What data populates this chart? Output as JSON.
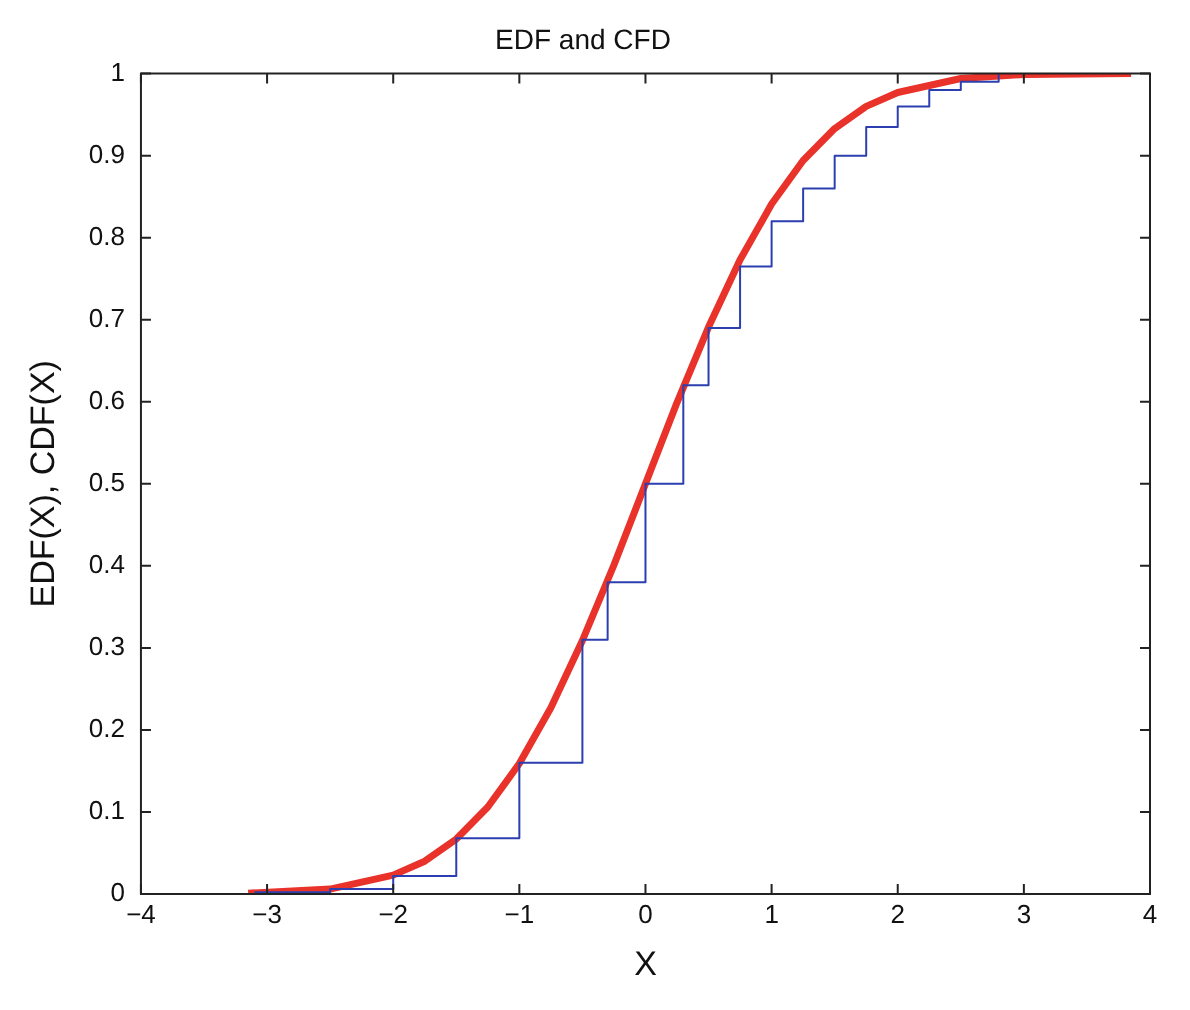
{
  "chart_data": {
    "type": "line",
    "title": "EDF and CFD",
    "xlabel": "X",
    "ylabel": "EDF(X), CDF(X)",
    "xlim": [
      -4,
      4
    ],
    "xticks": [
      -4,
      -3,
      -2,
      -1,
      0,
      1,
      2,
      3,
      4
    ],
    "ylim": [
      0,
      1
    ],
    "yticks": [
      0,
      0.1,
      0.2,
      0.3,
      0.4,
      0.5,
      0.6,
      0.7,
      0.8,
      0.9,
      1
    ],
    "grid": false,
    "legend": false,
    "marker": "none",
    "line_style": "solid",
    "series": [
      {
        "type": "step",
        "color": "#2b3fb0",
        "x": [
          -3.1,
          -2.5,
          -2,
          -1.5,
          -1,
          -0.5,
          -0.3,
          0,
          0.3,
          0.5,
          0.75,
          1,
          1.25,
          1.5,
          1.75,
          2,
          2.25,
          2.5,
          2.8
        ],
        "values": [
          0.002,
          0.006,
          0.022,
          0.068,
          0.16,
          0.31,
          0.38,
          0.5,
          0.62,
          0.69,
          0.765,
          0.82,
          0.86,
          0.9,
          0.935,
          0.96,
          0.98,
          0.99,
          1
        ]
      },
      {
        "color": "#e8322a",
        "x": [
          -3.15,
          -2.5,
          -2,
          -1.75,
          -1.5,
          -1.25,
          -1,
          -0.75,
          -0.5,
          -0.25,
          0,
          0.25,
          0.5,
          0.75,
          1,
          1.25,
          1.5,
          1.75,
          2,
          2.5,
          3,
          3.85
        ],
        "values": [
          0.001,
          0.006,
          0.023,
          0.04,
          0.067,
          0.106,
          0.159,
          0.227,
          0.309,
          0.401,
          0.5,
          0.599,
          0.691,
          0.773,
          0.841,
          0.894,
          0.933,
          0.96,
          0.977,
          0.994,
          0.999,
          1
        ]
      }
    ]
  }
}
